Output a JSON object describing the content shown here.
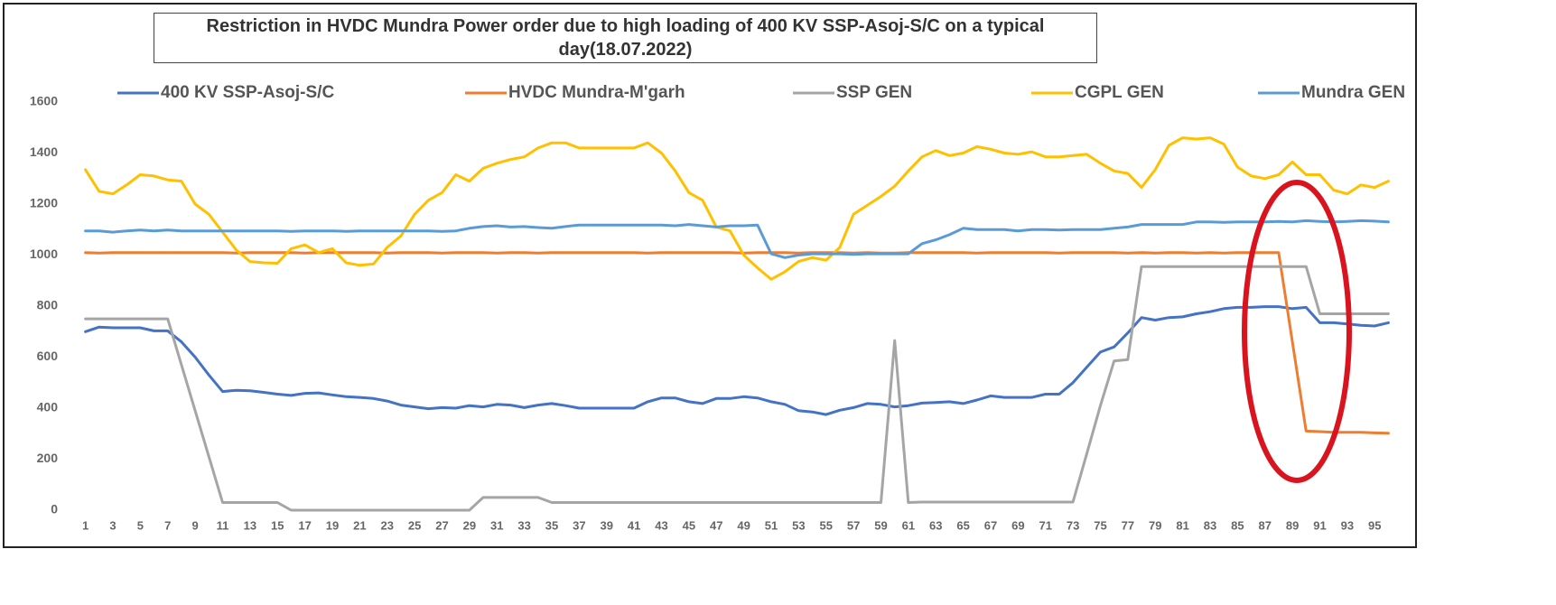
{
  "chart_data": {
    "type": "line",
    "title": "Restriction in HVDC Mundra Power order due to high loading of 400 KV SSP-Asoj-S/C on a typical day(18.07.2022)",
    "categories": [
      1,
      null,
      3,
      null,
      5,
      null,
      7,
      null,
      9,
      null,
      11,
      null,
      13,
      null,
      15,
      null,
      17,
      null,
      19,
      null,
      21,
      null,
      23,
      null,
      25,
      null,
      27,
      null,
      29,
      null,
      31,
      null,
      33,
      null,
      35,
      null,
      37,
      null,
      39,
      null,
      41,
      null,
      43,
      null,
      45,
      null,
      47,
      null,
      49,
      null,
      51,
      null,
      53,
      null,
      55,
      null,
      57,
      null,
      59,
      null,
      61,
      null,
      63,
      null,
      65,
      null,
      67,
      null,
      69,
      null,
      71,
      null,
      73,
      null,
      75,
      null,
      77,
      null,
      79,
      null,
      81,
      null,
      83,
      null,
      85,
      null,
      87,
      null,
      89,
      null,
      91,
      null,
      93,
      null,
      95,
      null
    ],
    "ylim": [
      0,
      1600
    ],
    "yticks": [
      0,
      200,
      400,
      600,
      800,
      1000,
      1200,
      1400,
      1600
    ],
    "grid": false,
    "legend": "top",
    "series": [
      {
        "name": "400 KV SSP-Asoj-S/C",
        "color": "#4472c4",
        "values": [
          700,
          718,
          715,
          715,
          715,
          703,
          703,
          660,
          600,
          530,
          465,
          470,
          468,
          462,
          455,
          450,
          458,
          460,
          452,
          445,
          442,
          438,
          428,
          412,
          405,
          398,
          402,
          400,
          410,
          405,
          415,
          412,
          402,
          412,
          418,
          410,
          400,
          400,
          400,
          400,
          400,
          425,
          440,
          440,
          425,
          418,
          438,
          438,
          445,
          440,
          425,
          415,
          390,
          385,
          375,
          392,
          402,
          418,
          415,
          405,
          410,
          420,
          422,
          425,
          418,
          432,
          448,
          442,
          442,
          442,
          455,
          455,
          500,
          560,
          620,
          640,
          695,
          755,
          745,
          755,
          758,
          770,
          778,
          790,
          795,
          795,
          798,
          798,
          790,
          795,
          735,
          735,
          730,
          725,
          722,
          735
        ]
      },
      {
        "name": "HVDC Mundra-M'garh",
        "color": "#ed7d31",
        "values": [
          1010,
          1008,
          1010,
          1010,
          1010,
          1010,
          1010,
          1010,
          1010,
          1010,
          1010,
          1008,
          1010,
          1010,
          1010,
          1010,
          1008,
          1010,
          1010,
          1010,
          1010,
          1010,
          1008,
          1010,
          1010,
          1010,
          1008,
          1010,
          1010,
          1010,
          1008,
          1010,
          1010,
          1008,
          1010,
          1010,
          1010,
          1010,
          1010,
          1010,
          1010,
          1008,
          1010,
          1010,
          1010,
          1010,
          1010,
          1010,
          1008,
          1010,
          1010,
          1010,
          1008,
          1010,
          1010,
          1010,
          1008,
          1010,
          1008,
          1008,
          1010,
          1010,
          1010,
          1010,
          1010,
          1008,
          1010,
          1010,
          1010,
          1010,
          1010,
          1008,
          1010,
          1010,
          1010,
          1010,
          1008,
          1010,
          1008,
          1010,
          1010,
          1008,
          1010,
          1008,
          1010,
          1010,
          1010,
          1010,
          660,
          310,
          308,
          305,
          305,
          305,
          303,
          302
        ]
      },
      {
        "name": "SSP GEN",
        "color": "#a5a5a5",
        "values": [
          750,
          750,
          750,
          750,
          750,
          750,
          750,
          570,
          390,
          210,
          30,
          30,
          30,
          30,
          30,
          0,
          0,
          0,
          0,
          0,
          0,
          0,
          0,
          0,
          0,
          0,
          0,
          0,
          0,
          50,
          50,
          50,
          50,
          50,
          30,
          30,
          30,
          30,
          30,
          30,
          30,
          30,
          30,
          30,
          30,
          30,
          30,
          30,
          30,
          30,
          30,
          30,
          30,
          30,
          30,
          30,
          30,
          30,
          30,
          665,
          30,
          32,
          32,
          32,
          32,
          32,
          32,
          32,
          32,
          32,
          32,
          32,
          32,
          220,
          410,
          585,
          590,
          955,
          955,
          955,
          955,
          955,
          955,
          955,
          955,
          955,
          955,
          955,
          955,
          955,
          770,
          770,
          770,
          770,
          770,
          770
        ]
      },
      {
        "name": "CGPL GEN",
        "color": "#ffc000",
        "values": [
          1335,
          1250,
          1240,
          1275,
          1315,
          1310,
          1295,
          1290,
          1200,
          1160,
          1090,
          1020,
          975,
          970,
          968,
          1025,
          1040,
          1010,
          1025,
          970,
          960,
          965,
          1030,
          1075,
          1160,
          1215,
          1245,
          1315,
          1290,
          1340,
          1360,
          1375,
          1385,
          1420,
          1440,
          1440,
          1420,
          1420,
          1420,
          1420,
          1420,
          1440,
          1400,
          1330,
          1245,
          1215,
          1110,
          1095,
          1000,
          950,
          905,
          935,
          975,
          990,
          980,
          1030,
          1160,
          1195,
          1230,
          1270,
          1330,
          1385,
          1410,
          1390,
          1400,
          1425,
          1415,
          1400,
          1395,
          1405,
          1385,
          1385,
          1390,
          1395,
          1360,
          1330,
          1320,
          1265,
          1335,
          1430,
          1460,
          1455,
          1460,
          1435,
          1345,
          1310,
          1300,
          1315,
          1365,
          1315,
          1315,
          1255,
          1240,
          1275,
          1265,
          1290
        ]
      },
      {
        "name": "Mundra GEN",
        "color": "#5b9bd5",
        "values": [
          1095,
          1095,
          1090,
          1095,
          1098,
          1095,
          1098,
          1095,
          1095,
          1095,
          1095,
          1095,
          1095,
          1095,
          1095,
          1093,
          1095,
          1095,
          1095,
          1093,
          1095,
          1095,
          1095,
          1095,
          1095,
          1095,
          1093,
          1095,
          1105,
          1112,
          1115,
          1110,
          1112,
          1108,
          1105,
          1112,
          1118,
          1118,
          1118,
          1118,
          1118,
          1118,
          1118,
          1115,
          1120,
          1115,
          1110,
          1115,
          1115,
          1118,
          1005,
          990,
          1000,
          1005,
          1005,
          1005,
          1003,
          1005,
          1005,
          1005,
          1005,
          1045,
          1060,
          1080,
          1105,
          1100,
          1100,
          1100,
          1095,
          1100,
          1100,
          1098,
          1100,
          1100,
          1100,
          1105,
          1110,
          1120,
          1120,
          1120,
          1120,
          1130,
          1130,
          1128,
          1130,
          1130,
          1130,
          1132,
          1130,
          1135,
          1132,
          1130,
          1132,
          1135,
          1133,
          1130
        ]
      }
    ]
  }
}
